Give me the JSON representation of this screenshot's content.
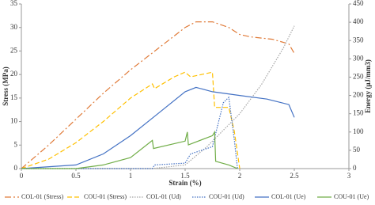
{
  "chart_data": {
    "type": "line",
    "x_label": "Strain (%)",
    "y_label": "Stress (MPa)",
    "y2_label": "Energy (μJ/mm3)",
    "xlim": [
      0,
      3
    ],
    "xticks": [
      0,
      0.5,
      1,
      1.5,
      2,
      2.5,
      3
    ],
    "ylim": [
      0,
      35
    ],
    "yticks": [
      0,
      5,
      10,
      15,
      20,
      25,
      30,
      35
    ],
    "y2lim": [
      0,
      450
    ],
    "y2ticks": [
      0,
      50,
      100,
      150,
      200,
      250,
      300,
      350,
      400,
      450
    ],
    "legend": "bottom",
    "series": [
      {
        "name": "COL-01 (Stress)",
        "color": "#e07b39",
        "line_style": "dashdot",
        "x": [
          0,
          0.25,
          0.5,
          0.75,
          1.0,
          1.25,
          1.5,
          1.6,
          1.75,
          1.9,
          2.0,
          2.1,
          2.3,
          2.45,
          2.5
        ],
        "values": [
          0,
          5,
          10.5,
          16,
          21,
          25.5,
          30,
          31.2,
          31.2,
          30,
          28.5,
          28,
          27.5,
          26.5,
          24.5
        ]
      },
      {
        "name": "COU-01 (Stress)",
        "color": "#ffc000",
        "line_style": "dashed",
        "x": [
          0,
          0.25,
          0.5,
          0.75,
          1.0,
          1.2,
          1.22,
          1.4,
          1.5,
          1.55,
          1.75,
          1.77,
          1.9,
          1.95,
          2.0
        ],
        "values": [
          0,
          2,
          5.5,
          10,
          15,
          18,
          17,
          19.5,
          20.5,
          19.5,
          20.5,
          13,
          13,
          8,
          0
        ]
      },
      {
        "name": "COL-01 (Ud)",
        "color": "#a5a5a5",
        "line_style": "dotted",
        "axis": "y2",
        "x": [
          0,
          1.2,
          1.5,
          1.7,
          2.0,
          2.2,
          2.4,
          2.5
        ],
        "values": [
          0,
          0,
          10,
          60,
          150,
          230,
          330,
          390
        ]
      },
      {
        "name": "COU-01 (Ud)",
        "color": "#4472c4",
        "line_style": "dotted",
        "axis": "y2",
        "x": [
          0,
          1.2,
          1.22,
          1.5,
          1.55,
          1.75,
          1.8,
          1.85,
          1.9,
          1.95,
          1.98
        ],
        "values": [
          0,
          0,
          10,
          15,
          40,
          60,
          120,
          180,
          195,
          80,
          0
        ]
      },
      {
        "name": "COL-01 (Ue)",
        "color": "#4472c4",
        "line_style": "solid",
        "axis": "y2",
        "x": [
          0,
          0.5,
          0.75,
          1.0,
          1.25,
          1.5,
          1.6,
          1.75,
          2.0,
          2.25,
          2.45,
          2.5
        ],
        "values": [
          0,
          10,
          40,
          90,
          150,
          210,
          222,
          210,
          200,
          190,
          175,
          140
        ]
      },
      {
        "name": "COU-01 (Ue)",
        "color": "#70ad47",
        "line_style": "solid",
        "axis": "y2",
        "x": [
          0,
          0.5,
          0.75,
          1.0,
          1.2,
          1.21,
          1.5,
          1.52,
          1.53,
          1.75,
          1.77,
          1.78,
          1.9,
          1.98
        ],
        "values": [
          0,
          0,
          10,
          30,
          77,
          55,
          75,
          100,
          65,
          90,
          100,
          20,
          10,
          0
        ]
      }
    ]
  }
}
